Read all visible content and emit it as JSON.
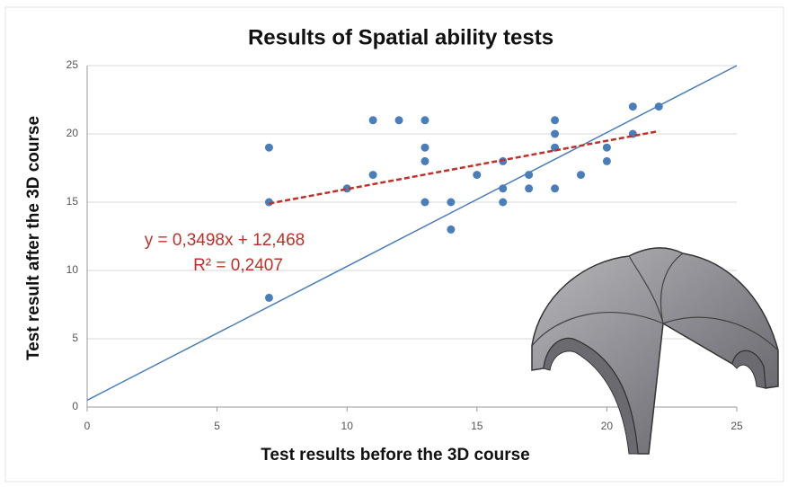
{
  "chart_data": {
    "type": "scatter",
    "title": "Results of Spatial ability tests",
    "x_label": "Test results before the 3D course",
    "y_label": "Test result after the 3D course",
    "x": [
      7,
      7,
      7,
      10,
      11,
      11,
      12,
      13,
      13,
      13,
      13,
      14,
      14,
      15,
      16,
      16,
      16,
      17,
      17,
      18,
      18,
      18,
      18,
      19,
      20,
      20,
      21,
      21,
      22
    ],
    "y": [
      19,
      15,
      8,
      16,
      21,
      17,
      21,
      21,
      19,
      18,
      15,
      15,
      13,
      17,
      18,
      16,
      15,
      17,
      16,
      21,
      20,
      19,
      16,
      17,
      19,
      18,
      22,
      20,
      22
    ],
    "color": "#4a7ebb",
    "reference_line": {
      "x": [
        0,
        25
      ],
      "y": [
        0.5,
        25
      ],
      "color": "#4a7ebb"
    },
    "trendline": {
      "x": [
        7,
        22
      ],
      "y": [
        14.9,
        20.2
      ],
      "color": "#c0302a",
      "equation": "y = 0,3498x + 12,468",
      "r_squared": "R² = 0,2407"
    },
    "xlim": [
      0,
      25
    ],
    "ylim": [
      0,
      25
    ],
    "xticks": [
      0,
      5,
      10,
      15,
      20,
      25
    ],
    "yticks": [
      0,
      5,
      10,
      15,
      20,
      25
    ],
    "grid": true
  }
}
